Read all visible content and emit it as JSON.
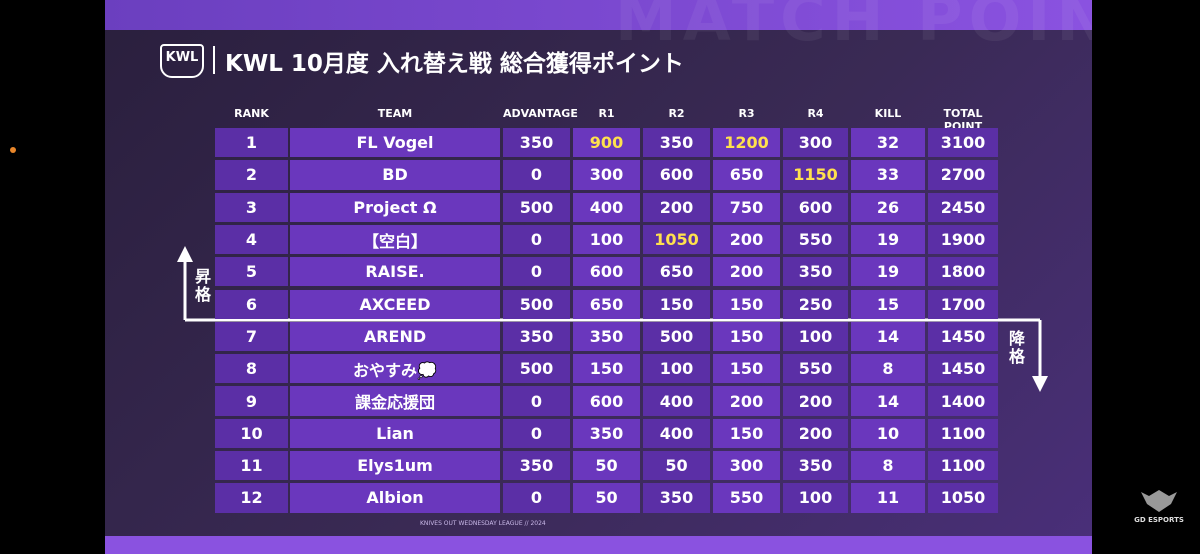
{
  "header": {
    "logo": "KWL",
    "title": "KWL 10月度 入れ替え戦 総合獲得ポイント",
    "watermark": "MATCH POINT"
  },
  "table": {
    "columns": [
      "RANK",
      "TEAM",
      "ADVANTAGE",
      "R1",
      "R2",
      "R3",
      "R4",
      "KILL",
      "TOTAL POINT"
    ],
    "rows": [
      [
        1,
        "FL Vogel",
        350,
        900,
        350,
        1200,
        300,
        32,
        3100
      ],
      [
        2,
        "BD",
        0,
        300,
        600,
        650,
        1150,
        33,
        2700
      ],
      [
        3,
        "Project Ω",
        500,
        400,
        200,
        750,
        600,
        26,
        2450
      ],
      [
        4,
        "【空白】",
        0,
        100,
        1050,
        200,
        550,
        19,
        1900
      ],
      [
        5,
        "RAISE.",
        0,
        600,
        650,
        200,
        350,
        19,
        1800
      ],
      [
        6,
        "AXCEED",
        500,
        650,
        150,
        150,
        250,
        15,
        1700
      ],
      [
        7,
        "AREND",
        350,
        350,
        500,
        150,
        100,
        14,
        1450
      ],
      [
        8,
        "おやすみ💭",
        500,
        150,
        100,
        150,
        550,
        8,
        1450
      ],
      [
        9,
        "課金応援団",
        0,
        600,
        400,
        200,
        200,
        14,
        1400
      ],
      [
        10,
        "Lian",
        0,
        350,
        400,
        150,
        200,
        10,
        1100
      ],
      [
        11,
        "Elys1um",
        350,
        50,
        50,
        300,
        350,
        8,
        1100
      ],
      [
        12,
        "Albion",
        0,
        50,
        350,
        550,
        100,
        11,
        1050
      ]
    ],
    "highlighted_cells": [
      [
        0,
        3
      ],
      [
        0,
        5
      ],
      [
        1,
        6
      ],
      [
        3,
        4
      ]
    ]
  },
  "promotion_label": "昇格",
  "relegation_label": "降格",
  "footer": "KNIVES OUT WEDNESDAY LEAGUE // 2024",
  "sponsor": "GD ESPORTS"
}
